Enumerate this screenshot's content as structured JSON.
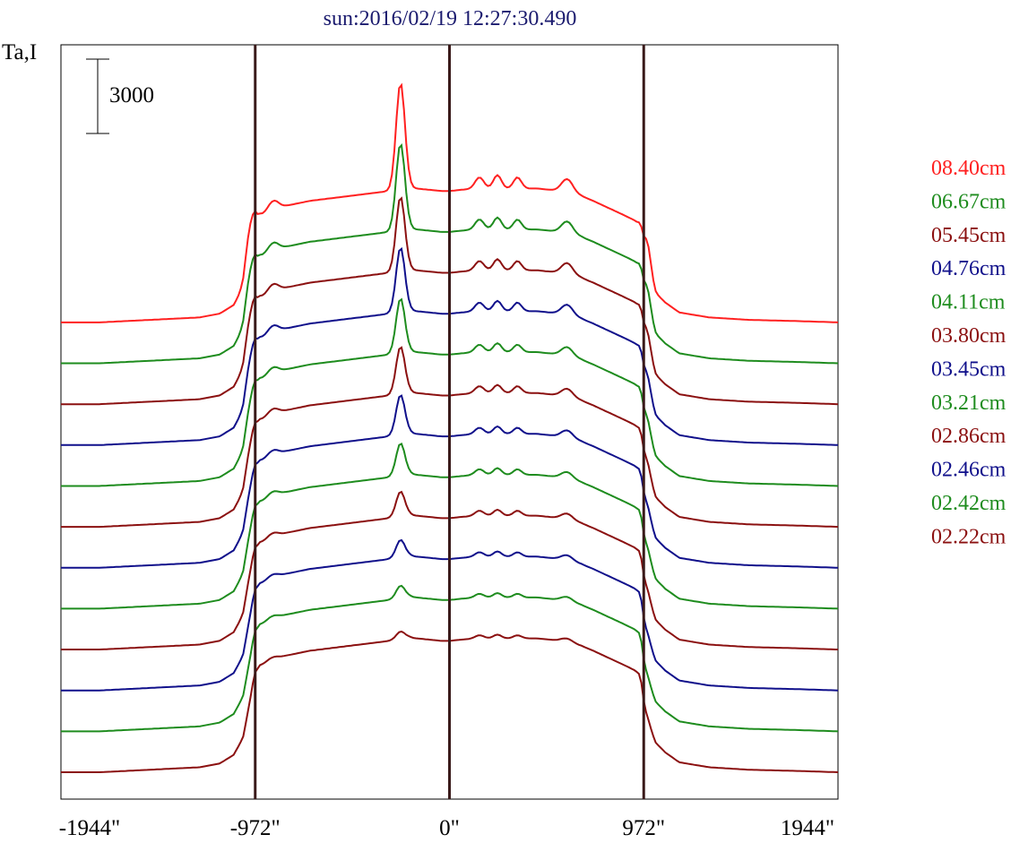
{
  "chart_data": {
    "type": "line",
    "title": "sun:2016/02/19 12:27:30.490",
    "ylabel": "Ta,I",
    "scale_bar_label": "3000",
    "scale_bar_value": 3000,
    "x_tick_labels": [
      "-1944\"",
      "-972\"",
      "0\"",
      "972\"",
      "1944\""
    ],
    "x_ticks": [
      -1944,
      -972,
      0,
      972,
      1944
    ],
    "xlim": [
      -1944,
      1944
    ],
    "vertical_lines": [
      -972,
      0,
      972
    ],
    "vertical_line_color": "#3a1a1a",
    "series_offset_step": 1650,
    "profile_x": [
      -1944,
      -1750,
      -1500,
      -1250,
      -1150,
      -1080,
      -1030,
      -1000,
      -975,
      -950,
      -900,
      -860,
      -820,
      -760,
      -700,
      -600,
      -500,
      -400,
      -300,
      -260,
      -230,
      -215,
      -200,
      -185,
      -165,
      -100,
      -40,
      0,
      60,
      140,
      200,
      260,
      320,
      380,
      440,
      500,
      560,
      610,
      660,
      720,
      800,
      880,
      930,
      955,
      968,
      978,
      1000,
      1030,
      1080,
      1150,
      1300,
      1500,
      1750,
      1944
    ],
    "profile_base": [
      0,
      0,
      100,
      200,
      350,
      700,
      1400,
      2600,
      3900,
      4300,
      4500,
      4600,
      4700,
      4800,
      4900,
      5000,
      5100,
      5200,
      5300,
      5350,
      5400,
      5420,
      5450,
      5420,
      5400,
      5350,
      5300,
      5300,
      5350,
      5400,
      5400,
      5400,
      5400,
      5400,
      5400,
      5350,
      5300,
      5200,
      5100,
      4900,
      4600,
      4300,
      4100,
      3900,
      3000,
      2400,
      1800,
      1200,
      800,
      400,
      200,
      100,
      50,
      0
    ],
    "series": [
      {
        "name": "08.40cm",
        "color": "#ff2020",
        "peak_amp": 4300,
        "limb_amp": 1200,
        "bump_amp": 900,
        "offset_rank": 11
      },
      {
        "name": "06.67cm",
        "color": "#1e8c1e",
        "peak_amp": 3500,
        "limb_amp": 1000,
        "bump_amp": 800,
        "offset_rank": 10
      },
      {
        "name": "05.45cm",
        "color": "#8b1010",
        "peak_amp": 3000,
        "limb_amp": 900,
        "bump_amp": 750,
        "offset_rank": 9
      },
      {
        "name": "04.76cm",
        "color": "#10108b",
        "peak_amp": 2600,
        "limb_amp": 800,
        "bump_amp": 700,
        "offset_rank": 8
      },
      {
        "name": "04.11cm",
        "color": "#1e8c1e",
        "peak_amp": 2200,
        "limb_amp": 700,
        "bump_amp": 600,
        "offset_rank": 7
      },
      {
        "name": "03.80cm",
        "color": "#8b1010",
        "peak_amp": 1900,
        "limb_amp": 600,
        "bump_amp": 550,
        "offset_rank": 6
      },
      {
        "name": "03.45cm",
        "color": "#10108b",
        "peak_amp": 1600,
        "limb_amp": 500,
        "bump_amp": 500,
        "offset_rank": 5
      },
      {
        "name": "03.21cm",
        "color": "#1e8c1e",
        "peak_amp": 1300,
        "limb_amp": 450,
        "bump_amp": 450,
        "offset_rank": 4
      },
      {
        "name": "02.86cm",
        "color": "#8b1010",
        "peak_amp": 1000,
        "limb_amp": 400,
        "bump_amp": 400,
        "offset_rank": 3
      },
      {
        "name": "02.46cm",
        "color": "#10108b",
        "peak_amp": 700,
        "limb_amp": 300,
        "bump_amp": 350,
        "offset_rank": 2
      },
      {
        "name": "02.42cm",
        "color": "#1e8c1e",
        "peak_amp": 500,
        "limb_amp": 250,
        "bump_amp": 300,
        "offset_rank": 1
      },
      {
        "name": "02.22cm",
        "color": "#8b1010",
        "peak_amp": 300,
        "limb_amp": 200,
        "bump_amp": 250,
        "offset_rank": 0
      }
    ],
    "legend_placement": "right",
    "grid": false
  }
}
